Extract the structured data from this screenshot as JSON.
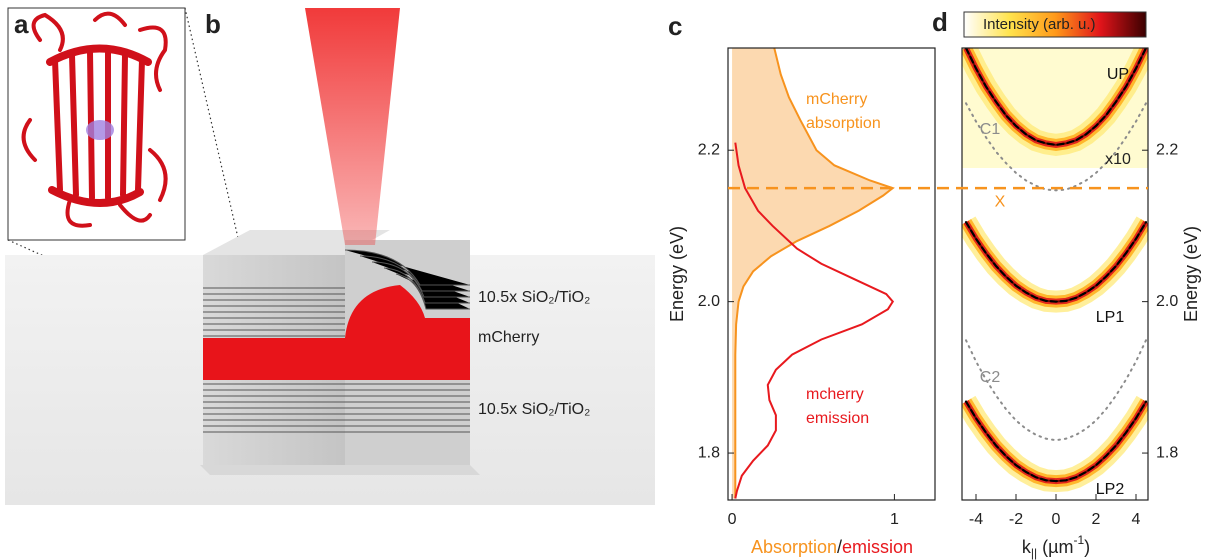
{
  "panel_labels": [
    "a",
    "b",
    "c",
    "d"
  ],
  "figure_b": {
    "mirror_top": "10.5x SiO₂/TiO₂",
    "cavity": "mCherry",
    "mirror_bottom": "10.5x SiO₂/TiO₂"
  },
  "chart_data": [
    {
      "type": "line",
      "orientation": "horizontal",
      "ylabel": "Energy (eV)",
      "xlabel": [
        {
          "text": "Absorption",
          "color": "#f7931e"
        },
        {
          "text": "/",
          "color": "#222222"
        },
        {
          "text": "emission",
          "color": "#e8191e"
        }
      ],
      "xlim": [
        -0.025,
        1.25
      ],
      "xticks": [
        0,
        1
      ],
      "ylim": [
        1.738,
        2.335
      ],
      "yticks": [
        1.8,
        {
          "value": 2.0,
          "label": "2.0"
        },
        2.2
      ],
      "series": [
        {
          "label": [
            "mCherry",
            "absorption"
          ],
          "color": "#f7931e",
          "fill": true,
          "y": [
            2.335,
            2.3,
            2.27,
            2.24,
            2.2,
            2.18,
            2.16,
            2.15,
            2.14,
            2.12,
            2.1,
            2.08,
            2.06,
            2.04,
            2.02,
            2.0,
            1.97,
            1.93,
            1.85,
            1.74
          ],
          "values": [
            0.26,
            0.3,
            0.35,
            0.42,
            0.52,
            0.63,
            0.85,
            0.99,
            0.93,
            0.78,
            0.6,
            0.4,
            0.24,
            0.13,
            0.07,
            0.04,
            0.025,
            0.02,
            0.02,
            0.02
          ]
        },
        {
          "label": [
            "mcherry",
            "emission"
          ],
          "color": "#e8191e",
          "fill": false,
          "y": [
            2.21,
            2.18,
            2.15,
            2.12,
            2.1,
            2.07,
            2.05,
            2.03,
            2.01,
            2.0,
            1.99,
            1.97,
            1.95,
            1.93,
            1.91,
            1.89,
            1.87,
            1.85,
            1.83,
            1.81,
            1.79,
            1.77,
            1.75,
            1.74
          ],
          "values": [
            0.02,
            0.04,
            0.08,
            0.16,
            0.25,
            0.4,
            0.55,
            0.75,
            0.95,
            0.99,
            0.96,
            0.8,
            0.55,
            0.37,
            0.27,
            0.22,
            0.23,
            0.27,
            0.27,
            0.22,
            0.13,
            0.06,
            0.03,
            0.02
          ]
        }
      ]
    },
    {
      "type": "line",
      "colorbar_label": "Intensity (arb. u.)",
      "xlabel": [
        "k",
        "||",
        " (µm",
        "-1",
        ")"
      ],
      "y2label": "Energy (eV)",
      "xlim": [
        -4.7,
        4.6
      ],
      "xticks": [
        -4,
        -2,
        0,
        2,
        4
      ],
      "y2lim": [
        1.738,
        2.335
      ],
      "y2ticks": [
        1.8,
        {
          "value": 2.0,
          "label": "2.0"
        },
        2.2
      ],
      "hline": {
        "value": 2.15,
        "label": "X",
        "color": "#f7931e"
      },
      "annotation": "x10",
      "x": [
        -4.5,
        -4,
        -3.5,
        -3,
        -2.5,
        -2,
        -1.5,
        -1,
        -0.5,
        0,
        0.5,
        1,
        1.5,
        2,
        2.5,
        3,
        3.5,
        4,
        4.5
      ],
      "series": [
        {
          "name": "UP",
          "axis": "y2",
          "style": "dashed",
          "color": "#000000",
          "glow": true,
          "values": [
            2.335,
            2.308,
            2.284,
            2.264,
            2.246,
            2.232,
            2.221,
            2.213,
            2.209,
            2.207,
            2.209,
            2.213,
            2.221,
            2.232,
            2.246,
            2.264,
            2.284,
            2.308,
            2.335
          ]
        },
        {
          "name": "C1",
          "axis": "y2",
          "style": "dotted",
          "color": "#8c8c8c",
          "glow": false,
          "values": [
            2.262,
            2.238,
            2.217,
            2.198,
            2.183,
            2.17,
            2.16,
            2.153,
            2.148,
            2.147,
            2.148,
            2.153,
            2.16,
            2.17,
            2.183,
            2.198,
            2.217,
            2.238,
            2.262
          ]
        },
        {
          "name": "LP1",
          "axis": "y2",
          "style": "dashed",
          "color": "#000000",
          "glow": true,
          "values": [
            2.105,
            2.083,
            2.064,
            2.047,
            2.033,
            2.021,
            2.012,
            2.005,
            2.001,
            2.0,
            2.001,
            2.005,
            2.012,
            2.021,
            2.033,
            2.047,
            2.064,
            2.083,
            2.105
          ]
        },
        {
          "name": "C2",
          "axis": "y2",
          "style": "dotted",
          "color": "#8c8c8c",
          "glow": false,
          "values": [
            1.949,
            1.921,
            1.897,
            1.876,
            1.858,
            1.843,
            1.832,
            1.824,
            1.819,
            1.817,
            1.819,
            1.824,
            1.832,
            1.843,
            1.858,
            1.876,
            1.897,
            1.921,
            1.949
          ]
        },
        {
          "name": "LP2",
          "axis": "y2",
          "style": "dashed",
          "color": "#000000",
          "glow": true,
          "values": [
            1.868,
            1.846,
            1.827,
            1.81,
            1.796,
            1.784,
            1.775,
            1.768,
            1.764,
            1.763,
            1.764,
            1.768,
            1.775,
            1.784,
            1.796,
            1.81,
            1.827,
            1.846,
            1.868
          ]
        }
      ]
    }
  ]
}
